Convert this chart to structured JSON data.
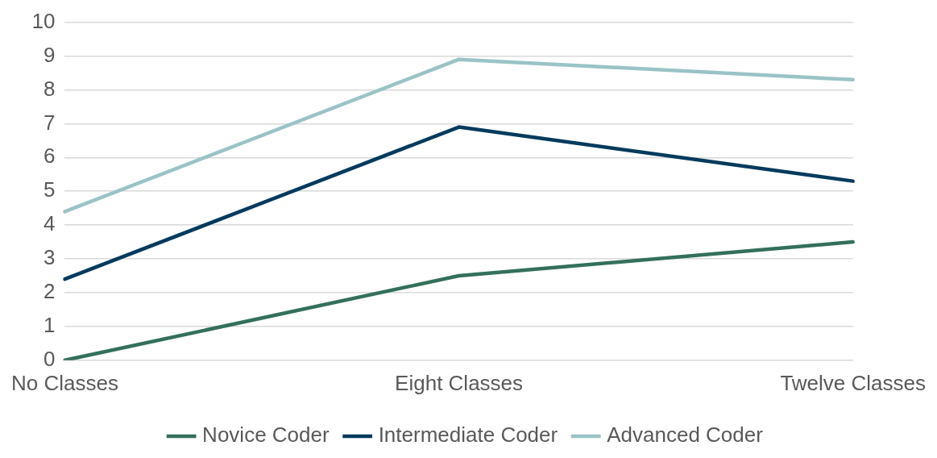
{
  "chart_data": {
    "type": "line",
    "categories": [
      "No Classes",
      "Eight Classes",
      "Twelve Classes"
    ],
    "series": [
      {
        "name": "Novice Coder",
        "color": "#33705a",
        "values": [
          0,
          2.5,
          3.5
        ]
      },
      {
        "name": "Intermediate Coder",
        "color": "#003a5d",
        "values": [
          2.4,
          6.9,
          5.3
        ]
      },
      {
        "name": "Advanced Coder",
        "color": "#9ac3c6",
        "values": [
          4.4,
          8.9,
          8.3
        ]
      }
    ],
    "ylim": [
      0,
      10
    ],
    "yticks": [
      0,
      1,
      2,
      3,
      4,
      5,
      6,
      7,
      8,
      9,
      10
    ],
    "grid": "y",
    "legend": "bottom",
    "marker": "none",
    "line_style": "solid"
  }
}
